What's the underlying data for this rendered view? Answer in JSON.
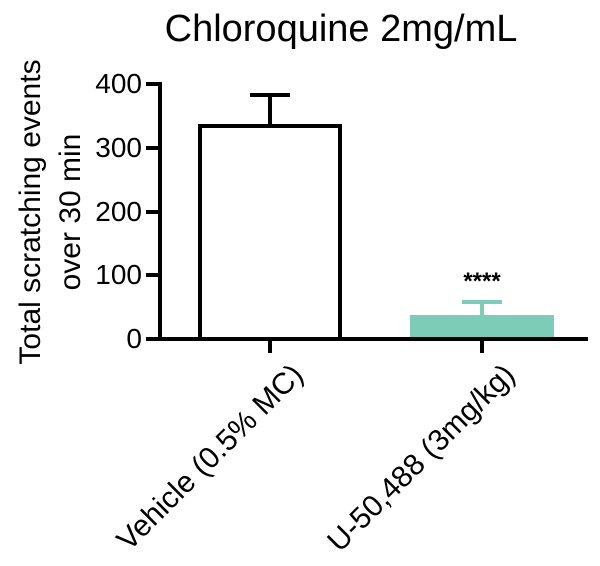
{
  "title": "Chloroquine 2mg/mL",
  "y_axis": {
    "label_line1": "Total scratching events",
    "label_line2": "over 30 min"
  },
  "chart_data": {
    "type": "bar",
    "title": "Chloroquine 2mg/mL",
    "categories": [
      "Vehicle (0.5% MC)",
      "U-50,488 (3mg/kg)"
    ],
    "values": [
      338,
      38
    ],
    "errors": [
      41,
      17
    ],
    "error_style": "SEM upper whisker with cap",
    "ylabel": "Total scratching events over 30 min",
    "xlabel": "",
    "ylim": [
      0,
      400
    ],
    "yticks": [
      0,
      100,
      200,
      300,
      400
    ],
    "bar_fill_colors": [
      "#FFFFFF",
      "#7DCCB8"
    ],
    "bar_edge_colors": [
      "#000000",
      "#7DCCB8"
    ],
    "annotations": [
      {
        "bar_index": 1,
        "text": "****"
      }
    ],
    "legend": null,
    "grid": false,
    "x_tick_label_rotation_deg": 45
  },
  "colors": {
    "axis": "#000000",
    "teal": "#7DCCB8",
    "background": "#FFFFFF",
    "text": "#000000"
  }
}
